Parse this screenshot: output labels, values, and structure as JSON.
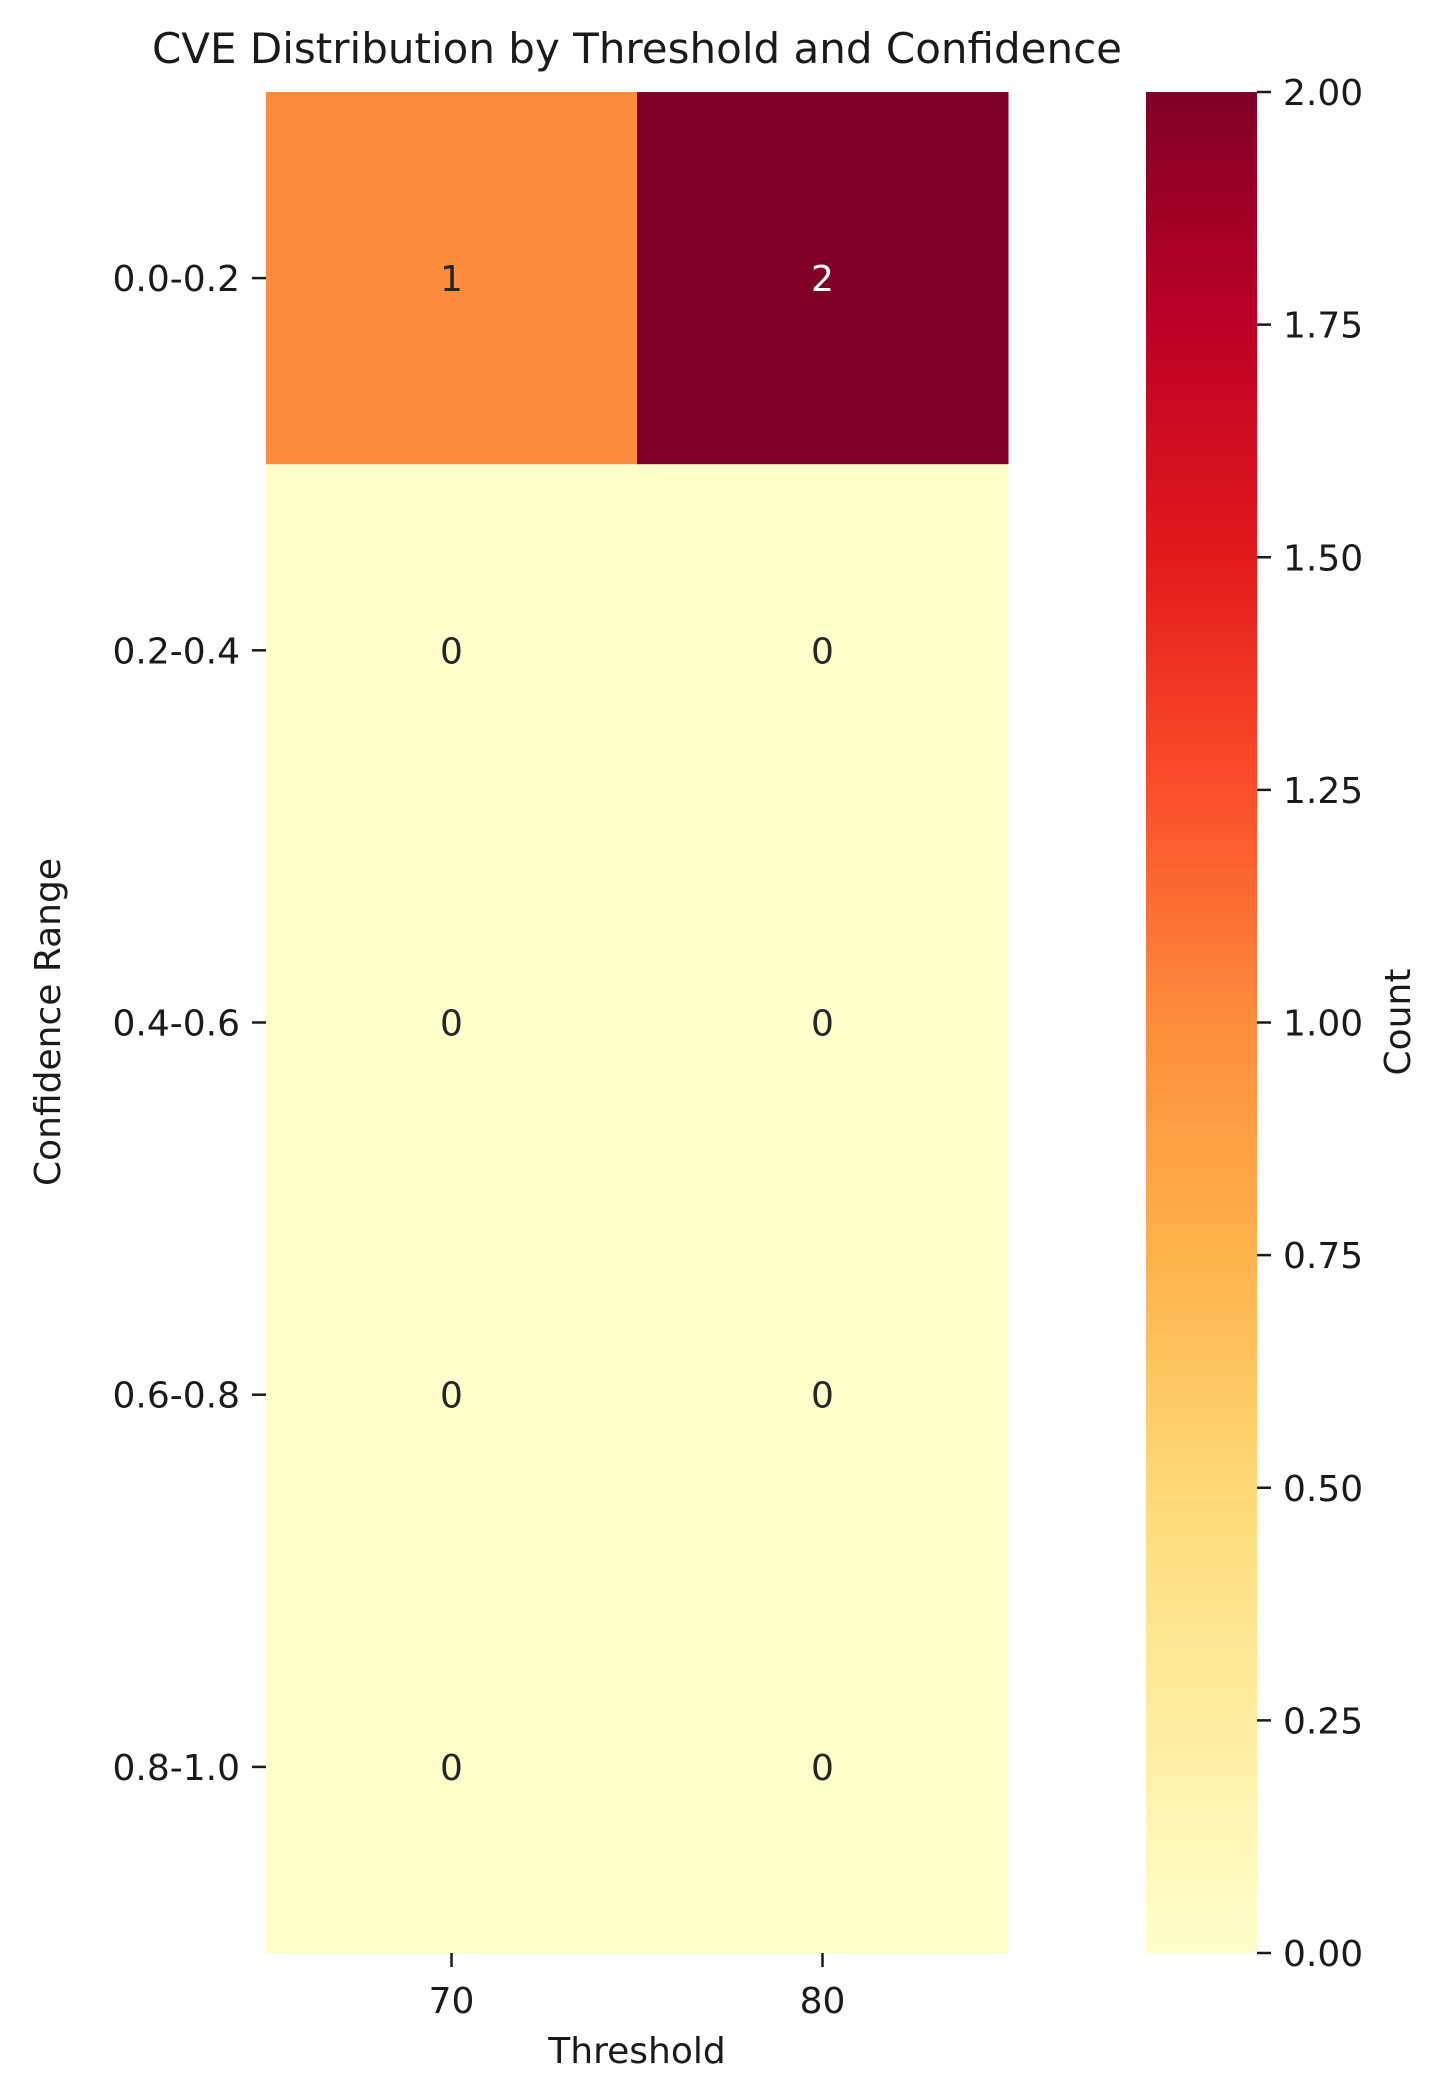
{
  "chart_data": {
    "type": "heatmap",
    "title": "CVE Distribution by Threshold and Confidence",
    "xlabel": "Threshold",
    "ylabel": "Confidence Range",
    "x_categories": [
      "70",
      "80"
    ],
    "y_categories": [
      "0.0-0.2",
      "0.2-0.4",
      "0.4-0.6",
      "0.6-0.8",
      "0.8-1.0"
    ],
    "values": [
      [
        1,
        2
      ],
      [
        0,
        0
      ],
      [
        0,
        0
      ],
      [
        0,
        0
      ],
      [
        0,
        0
      ]
    ],
    "annotations": [
      [
        "1",
        "2"
      ],
      [
        "0",
        "0"
      ],
      [
        "0",
        "0"
      ],
      [
        "0",
        "0"
      ],
      [
        "0",
        "0"
      ]
    ],
    "colormap": "YlOrRd",
    "colormap_stops": [
      "#ffffcc",
      "#ffeda0",
      "#fed976",
      "#feb24c",
      "#fd8d3c",
      "#fc4e2a",
      "#e31a1c",
      "#bd0026",
      "#800026"
    ],
    "colorbar": {
      "label": "Count",
      "range": [
        0,
        2
      ],
      "ticks": [
        0,
        0.25,
        0.5,
        0.75,
        1,
        1.25,
        1.5,
        1.75,
        2
      ],
      "tick_labels": [
        "0.00",
        "0.25",
        "0.50",
        "0.75",
        "1.00",
        "1.25",
        "1.50",
        "1.75",
        "2.00"
      ]
    },
    "grid": false
  }
}
